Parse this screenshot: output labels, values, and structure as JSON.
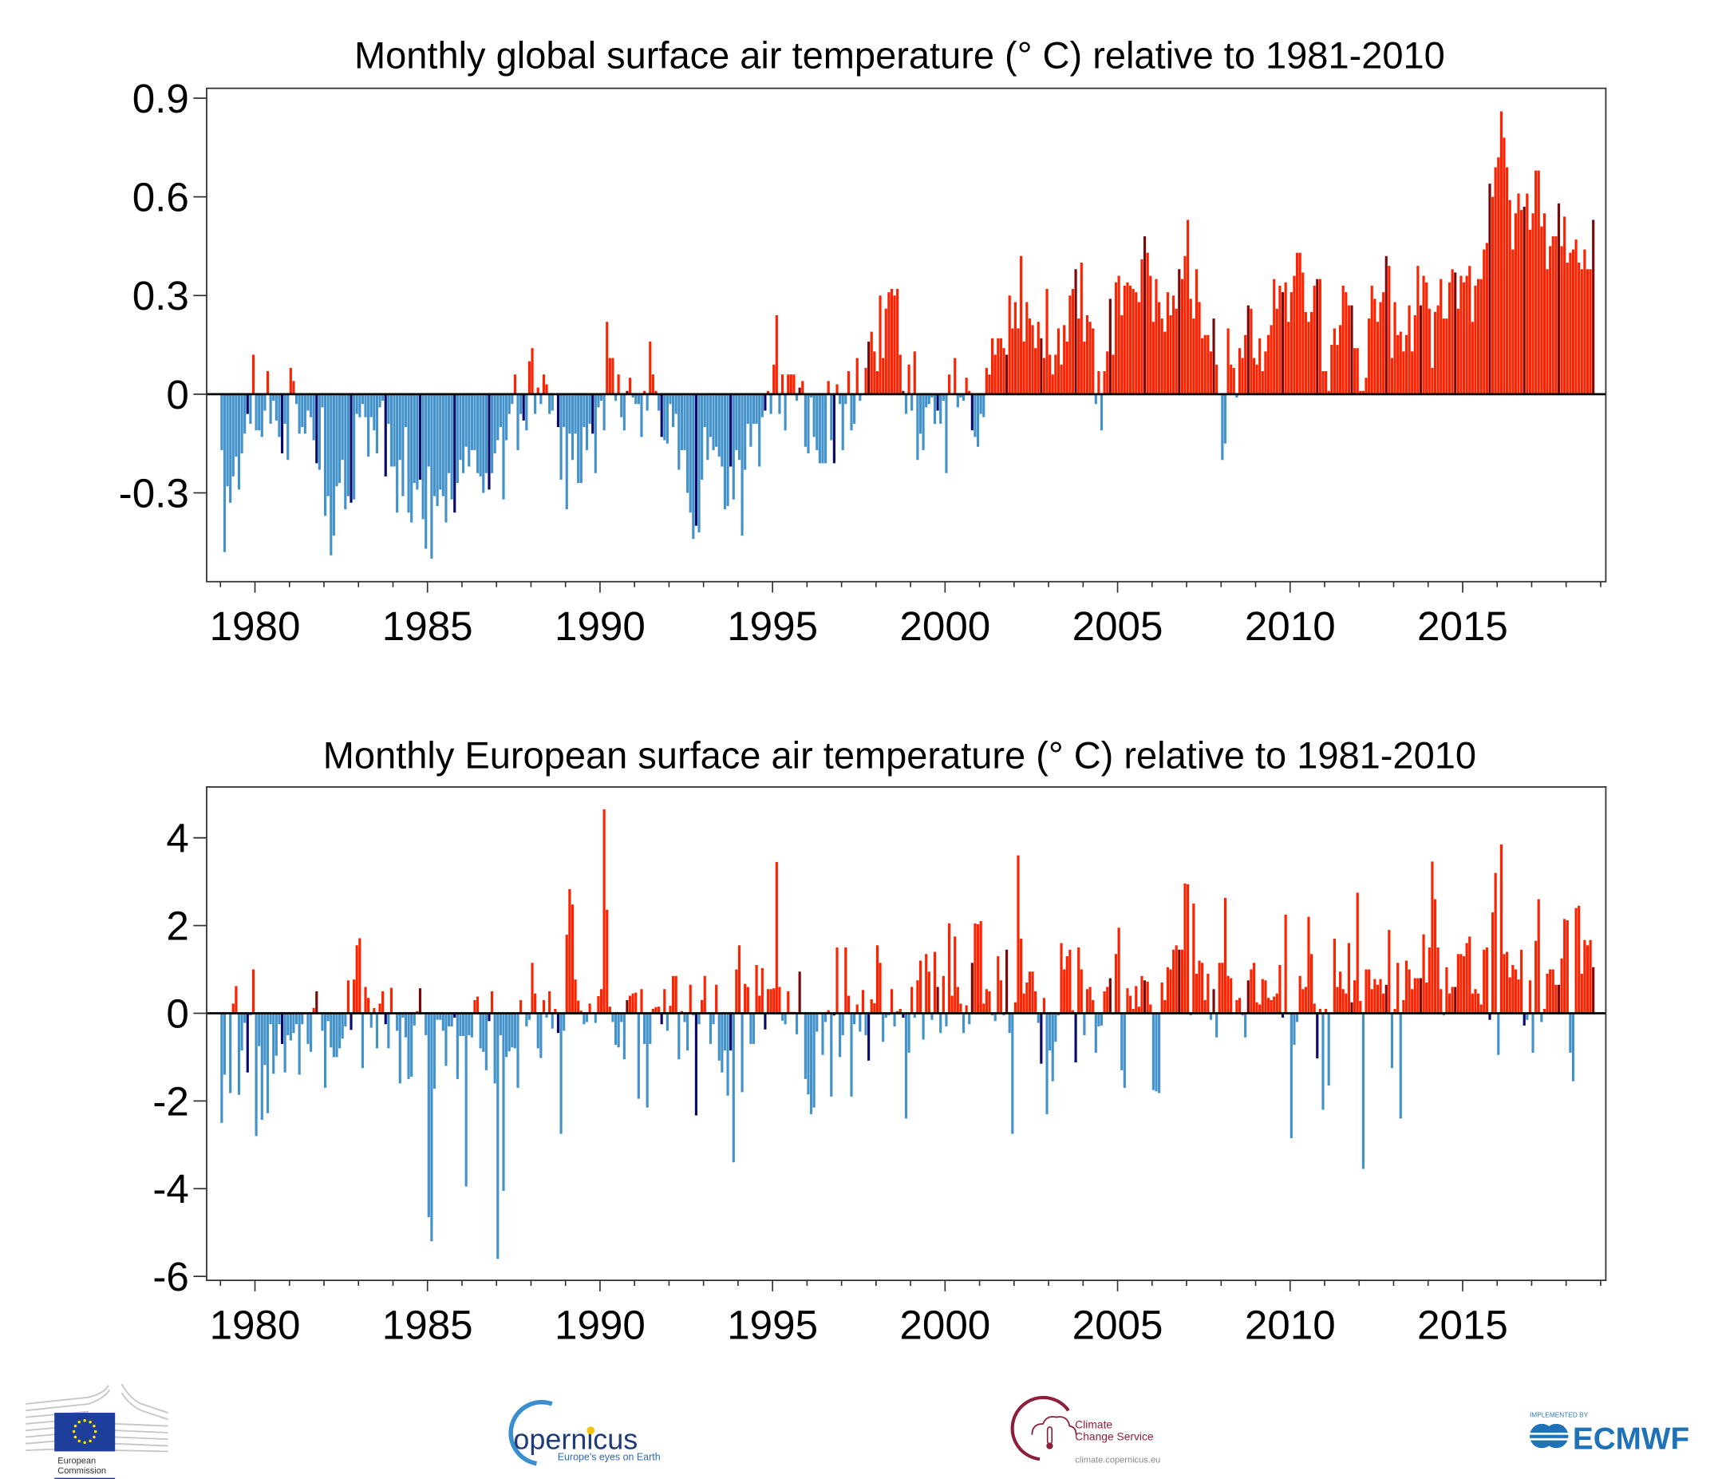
{
  "colors": {
    "positive": "#ff2200",
    "positive_highlight": "#7a0a0a",
    "negative": "#4392c9",
    "negative_highlight": "#0a0a6b",
    "zero_line": "#000000"
  },
  "chart_data": [
    {
      "type": "bar",
      "title": "Monthly  global surface air temperature (° C) relative to 1981-2010",
      "xlabel": "",
      "ylabel": "",
      "start": "1979-01",
      "frequency": "monthly",
      "highlight_month": "Oct",
      "xlim": [
        1978.6,
        2019.15
      ],
      "ylim": [
        -0.57,
        0.93
      ],
      "yticks": [
        {
          "v": 0.9,
          "label": "0.9"
        },
        {
          "v": 0.6,
          "label": "0.6"
        },
        {
          "v": 0.3,
          "label": "0.3"
        },
        {
          "v": 0,
          "label": "0"
        },
        {
          "v": -0.3,
          "label": "-0.3"
        }
      ],
      "xticks": [
        {
          "v": 1980,
          "label": "1980"
        },
        {
          "v": 1985,
          "label": "1985"
        },
        {
          "v": 1990,
          "label": "1990"
        },
        {
          "v": 1995,
          "label": "1995"
        },
        {
          "v": 2000,
          "label": "2000"
        },
        {
          "v": 2005,
          "label": "2005"
        },
        {
          "v": 2010,
          "label": "2010"
        },
        {
          "v": 2015,
          "label": "2015"
        }
      ],
      "values": [
        -0.17,
        -0.48,
        -0.28,
        -0.33,
        -0.25,
        -0.19,
        -0.29,
        -0.18,
        -0.12,
        -0.06,
        -0.09,
        0.12,
        -0.11,
        -0.11,
        -0.13,
        -0.05,
        0.07,
        -0.09,
        -0.02,
        -0.08,
        -0.13,
        -0.18,
        -0.09,
        -0.2,
        0.08,
        0.04,
        -0.03,
        -0.12,
        -0.1,
        -0.12,
        -0.05,
        -0.07,
        -0.14,
        -0.21,
        -0.23,
        -0.04,
        -0.37,
        -0.31,
        -0.49,
        -0.43,
        -0.28,
        -0.27,
        -0.2,
        -0.35,
        -0.31,
        -0.33,
        -0.32,
        -0.06,
        -0.07,
        -0.03,
        -0.07,
        -0.19,
        -0.07,
        -0.11,
        -0.18,
        -0.04,
        -0.02,
        -0.25,
        -0.09,
        -0.22,
        -0.22,
        -0.36,
        -0.2,
        -0.31,
        -0.1,
        -0.36,
        -0.39,
        -0.27,
        -0.29,
        -0.26,
        -0.38,
        -0.47,
        -0.22,
        -0.5,
        -0.31,
        -0.34,
        -0.29,
        -0.31,
        -0.39,
        -0.24,
        -0.32,
        -0.36,
        -0.27,
        -0.2,
        -0.24,
        -0.16,
        -0.22,
        -0.17,
        -0.17,
        -0.24,
        -0.25,
        -0.3,
        -0.24,
        -0.29,
        -0.24,
        -0.18,
        -0.14,
        -0.1,
        -0.32,
        -0.14,
        -0.06,
        -0.03,
        0.06,
        -0.17,
        -0.06,
        -0.08,
        -0.11,
        0.1,
        0.14,
        -0.06,
        0.02,
        -0.03,
        0.06,
        0.03,
        -0.06,
        -0.05,
        0.0,
        -0.1,
        -0.26,
        -0.1,
        -0.35,
        -0.12,
        -0.2,
        -0.12,
        -0.27,
        -0.27,
        -0.1,
        -0.17,
        -0.09,
        -0.12,
        -0.24,
        -0.04,
        -0.02,
        -0.11,
        0.22,
        0.11,
        0.11,
        -0.02,
        0.06,
        -0.07,
        -0.11,
        0.01,
        0.05,
        -0.01,
        -0.03,
        -0.03,
        -0.13,
        0.01,
        -0.05,
        0.16,
        0.06,
        0.01,
        -0.05,
        -0.13,
        -0.14,
        -0.15,
        -0.03,
        -0.1,
        -0.06,
        -0.23,
        -0.17,
        -0.17,
        -0.3,
        -0.36,
        -0.44,
        -0.4,
        -0.42,
        -0.26,
        -0.1,
        -0.2,
        -0.13,
        -0.17,
        -0.16,
        -0.19,
        -0.22,
        -0.35,
        -0.34,
        -0.22,
        -0.32,
        -0.17,
        -0.2,
        -0.43,
        -0.23,
        -0.09,
        -0.16,
        -0.09,
        -0.09,
        -0.22,
        -0.07,
        -0.05,
        0.01,
        -0.06,
        0.09,
        0.24,
        -0.06,
        0.06,
        -0.11,
        0.06,
        0.06,
        0.06,
        -0.02,
        0.02,
        0.04,
        -0.16,
        -0.18,
        -0.01,
        -0.13,
        -0.17,
        -0.21,
        -0.21,
        -0.21,
        0.04,
        -0.14,
        -0.21,
        0.03,
        -0.03,
        -0.17,
        -0.03,
        0.07,
        -0.11,
        -0.09,
        0.11,
        -0.02,
        0.0,
        0.08,
        0.16,
        0.19,
        0.13,
        0.07,
        0.3,
        0.11,
        0.26,
        0.31,
        0.32,
        0.3,
        0.32,
        0.12,
        0.01,
        -0.06,
        0.09,
        -0.05,
        0.13,
        -0.2,
        -0.12,
        -0.17,
        -0.04,
        -0.03,
        -0.01,
        -0.09,
        -0.05,
        -0.09,
        -0.02,
        -0.24,
        0.06,
        0.0,
        0.11,
        -0.04,
        -0.01,
        -0.02,
        0.05,
        0.01,
        -0.11,
        -0.13,
        -0.16,
        -0.06,
        -0.07,
        0.08,
        0.06,
        0.17,
        0.12,
        0.17,
        0.17,
        0.14,
        0.12,
        0.3,
        0.2,
        0.28,
        0.2,
        0.42,
        0.16,
        0.28,
        0.23,
        0.21,
        0.14,
        0.22,
        0.17,
        0.11,
        0.32,
        0.12,
        0.06,
        0.12,
        0.2,
        0.09,
        0.21,
        0.16,
        0.3,
        0.32,
        0.38,
        0.23,
        0.4,
        0.16,
        0.24,
        0.22,
        0.2,
        -0.03,
        0.07,
        -0.11,
        0.07,
        0.13,
        0.29,
        0.12,
        0.34,
        0.36,
        0.24,
        0.33,
        0.34,
        0.33,
        0.32,
        0.31,
        0.28,
        0.41,
        0.48,
        0.43,
        0.36,
        0.22,
        0.35,
        0.28,
        0.23,
        0.19,
        0.31,
        0.24,
        0.3,
        0.26,
        0.38,
        0.35,
        0.42,
        0.53,
        0.29,
        0.23,
        0.38,
        0.28,
        0.17,
        0.18,
        0.18,
        0.13,
        0.23,
        0.09,
        0.0,
        -0.2,
        -0.15,
        0.2,
        0.09,
        0.08,
        -0.01,
        0.14,
        0.11,
        0.18,
        0.27,
        0.26,
        0.11,
        0.09,
        0.17,
        0.07,
        0.13,
        0.18,
        0.21,
        0.35,
        0.26,
        0.33,
        0.31,
        0.34,
        0.22,
        0.31,
        0.36,
        0.43,
        0.43,
        0.37,
        0.25,
        0.22,
        0.25,
        0.33,
        0.35,
        0.35,
        0.07,
        0.07,
        0.01,
        0.15,
        0.2,
        0.15,
        0.21,
        0.33,
        0.31,
        0.27,
        0.27,
        0.14,
        0.14,
        0.01,
        0.01,
        0.05,
        0.23,
        0.33,
        0.29,
        0.22,
        0.28,
        0.31,
        0.42,
        0.39,
        0.11,
        0.28,
        0.18,
        0.19,
        0.13,
        0.18,
        0.27,
        0.13,
        0.24,
        0.39,
        0.27,
        0.36,
        0.34,
        0.26,
        0.08,
        0.25,
        0.27,
        0.35,
        0.23,
        0.23,
        0.34,
        0.38,
        0.37,
        0.26,
        0.36,
        0.34,
        0.36,
        0.39,
        0.22,
        0.33,
        0.35,
        0.35,
        0.44,
        0.46,
        0.64,
        0.6,
        0.69,
        0.72,
        0.86,
        0.78,
        0.69,
        0.59,
        0.44,
        0.55,
        0.61,
        0.56,
        0.57,
        0.61,
        0.5,
        0.55,
        0.68,
        0.68,
        0.51,
        0.55,
        0.38,
        0.45,
        0.48,
        0.48,
        0.58,
        0.45,
        0.54,
        0.4,
        0.43,
        0.44,
        0.47,
        0.4,
        0.38,
        0.44,
        0.38,
        0.38,
        0.53
      ]
    },
    {
      "type": "bar",
      "title": "Monthly  European surface air temperature (° C) relative to 1981-2010",
      "xlabel": "",
      "ylabel": "",
      "start": "1979-01",
      "frequency": "monthly",
      "highlight_month": "Oct",
      "xlim": [
        1978.6,
        2019.15
      ],
      "ylim": [
        -6.09,
        5.16
      ],
      "yticks": [
        {
          "v": 4,
          "label": "4"
        },
        {
          "v": 2,
          "label": "2"
        },
        {
          "v": 0,
          "label": "0"
        },
        {
          "v": -2,
          "label": "-2"
        },
        {
          "v": -4,
          "label": "-4"
        },
        {
          "v": -6,
          "label": "-6"
        }
      ],
      "xticks": [
        {
          "v": 1980,
          "label": "1980"
        },
        {
          "v": 1985,
          "label": "1985"
        },
        {
          "v": 1990,
          "label": "1990"
        },
        {
          "v": 1995,
          "label": "1995"
        },
        {
          "v": 2000,
          "label": "2000"
        },
        {
          "v": 2005,
          "label": "2005"
        },
        {
          "v": 2010,
          "label": "2010"
        },
        {
          "v": 2015,
          "label": "2015"
        }
      ],
      "values": [
        -2.5,
        -1.4,
        0.02,
        -1.82,
        0.22,
        0.62,
        -1.86,
        -0.85,
        -0.22,
        -1.35,
        -0.05,
        1.0,
        -2.8,
        -0.75,
        -2.43,
        -1.18,
        -2.28,
        -0.25,
        -1.38,
        -0.97,
        -0.25,
        -0.7,
        -1.35,
        -0.5,
        -0.62,
        -0.45,
        -0.25,
        -1.4,
        -0.25,
        0.02,
        -0.7,
        -0.88,
        0.12,
        0.5,
        0.0,
        -0.4,
        -1.7,
        -0.18,
        -0.78,
        -1.0,
        -1.0,
        -0.8,
        -0.58,
        -0.3,
        0.75,
        -0.38,
        0.77,
        1.55,
        1.71,
        -1.25,
        0.6,
        0.35,
        -0.33,
        0.12,
        -0.8,
        0.22,
        0.5,
        -0.25,
        -0.8,
        0.58,
        0.0,
        -0.4,
        -1.6,
        -0.1,
        -0.55,
        -1.5,
        -1.45,
        -0.28,
        0.05,
        0.57,
        0.02,
        -0.5,
        -4.65,
        -5.2,
        -1.72,
        -0.15,
        -0.15,
        -0.4,
        -1.2,
        -0.3,
        -0.3,
        -0.1,
        -1.5,
        -0.52,
        -0.52,
        -3.95,
        -0.5,
        -0.55,
        0.3,
        0.38,
        -0.8,
        -0.88,
        -1.3,
        -0.18,
        0.5,
        -1.6,
        -5.6,
        -0.5,
        -4.05,
        -1.0,
        -0.87,
        -0.78,
        -0.8,
        -1.7,
        0.3,
        0.0,
        -0.3,
        -0.15,
        1.15,
        0.45,
        -0.8,
        -1.02,
        0.3,
        -0.1,
        0.5,
        -0.35,
        0.1,
        -0.45,
        -2.75,
        -0.4,
        1.79,
        2.83,
        2.48,
        0.77,
        0.29,
        0.06,
        -0.25,
        -0.2,
        0.22,
        0.02,
        -0.22,
        0.39,
        0.55,
        4.65,
        2.36,
        0.15,
        -0.2,
        -0.72,
        -0.78,
        -0.2,
        -1.05,
        0.3,
        0.4,
        0.45,
        0.47,
        -1.95,
        0.55,
        -0.7,
        -2.15,
        -0.7,
        0.1,
        0.14,
        0.15,
        -0.25,
        0.55,
        -0.4,
        0.17,
        0.85,
        0.85,
        -1.05,
        0.05,
        -0.2,
        -0.85,
        0.65,
        -0.05,
        -2.33,
        -0.25,
        0.3,
        0.85,
        -0.02,
        -0.7,
        -0.25,
        0.65,
        -1.08,
        -1.35,
        -0.85,
        -1.88,
        -0.85,
        -3.4,
        1.0,
        1.55,
        -1.8,
        0.67,
        0.6,
        -0.7,
        -0.7,
        1.1,
        0.4,
        1.03,
        -0.37,
        0.55,
        0.55,
        0.57,
        3.45,
        0.6,
        -0.17,
        -0.25,
        0.5,
        0.03,
        0.03,
        -0.48,
        0.95,
        0.0,
        -1.5,
        -1.85,
        -2.3,
        -2.15,
        -0.42,
        0.02,
        -0.95,
        -0.2,
        0.07,
        -1.9,
        -0.05,
        1.5,
        -1.0,
        -0.5,
        1.5,
        0.4,
        -1.9,
        -0.25,
        0.2,
        -0.42,
        0.53,
        -0.5,
        -1.08,
        0.32,
        0.23,
        1.55,
        1.15,
        -0.65,
        -0.1,
        -0.05,
        0.55,
        -0.3,
        0.05,
        0.1,
        -0.1,
        -2.4,
        -0.9,
        0.6,
        -0.1,
        0.75,
        1.2,
        -0.6,
        1.35,
        0.95,
        -0.15,
        1.4,
        0.6,
        -0.45,
        0.85,
        -0.3,
        2.05,
        0.4,
        1.75,
        0.6,
        0.22,
        -0.45,
        0.18,
        -0.25,
        1.15,
        2.05,
        2.03,
        2.1,
        0.22,
        0.55,
        0.5,
        -0.05,
        -0.18,
        1.3,
        0.75,
        -0.05,
        1.45,
        -0.45,
        -2.75,
        0.25,
        3.6,
        1.7,
        0.45,
        0.7,
        0.95,
        0.95,
        0.5,
        -0.22,
        -1.15,
        0.35,
        -2.3,
        -0.85,
        -1.55,
        -0.65,
        -0.05,
        1.6,
        1.0,
        1.3,
        1.45,
        0.07,
        -1.12,
        1.5,
        1.0,
        -0.5,
        0.55,
        0.6,
        0.3,
        -0.9,
        -0.3,
        -0.28,
        0.5,
        0.6,
        0.8,
        -0.03,
        1.35,
        1.95,
        -1.3,
        -1.7,
        0.57,
        0.4,
        0.1,
        0.62,
        0.15,
        0.85,
        0.75,
        0.72,
        0.2,
        -1.75,
        -1.78,
        -1.82,
        0.7,
        0.3,
        1.05,
        1.0,
        1.45,
        1.55,
        1.45,
        1.45,
        2.96,
        2.94,
        -0.05,
        2.5,
        0.9,
        1.2,
        1.15,
        0.3,
        0.9,
        -0.15,
        0.55,
        -0.55,
        1.15,
        1.15,
        2.63,
        0.85,
        0.8,
        0.0,
        0.3,
        0.35,
        -0.05,
        -0.55,
        0.75,
        1.0,
        1.15,
        0.25,
        0.2,
        0.78,
        0.75,
        0.35,
        0.3,
        0.38,
        0.45,
        1.1,
        -0.1,
        2.25,
        -0.02,
        -2.85,
        -0.72,
        -0.2,
        0.85,
        0.55,
        0.6,
        2.2,
        1.35,
        0.22,
        -1.03,
        0.1,
        -2.2,
        0.1,
        -1.65,
        0.0,
        1.7,
        0.6,
        0.95,
        0.55,
        0.45,
        1.6,
        0.25,
        0.75,
        2.75,
        0.28,
        -3.55,
        1.0,
        1.0,
        0.55,
        0.78,
        0.65,
        0.78,
        0.45,
        0.65,
        1.9,
        -1.25,
        0.1,
        1.15,
        -2.4,
        0.3,
        1.2,
        1.0,
        0.55,
        0.8,
        0.8,
        0.8,
        1.8,
        0.7,
        1.5,
        3.46,
        2.6,
        1.5,
        0.55,
        -0.05,
        1.05,
        0.45,
        0.6,
        0.6,
        1.35,
        1.35,
        1.3,
        1.6,
        1.75,
        0.45,
        0.55,
        0.45,
        0.2,
        1.45,
        1.5,
        -0.15,
        2.3,
        3.2,
        -0.95,
        3.85,
        1.35,
        1.4,
        0.82,
        1.1,
        1.0,
        0.77,
        1.45,
        -0.28,
        -0.15,
        0.75,
        -0.9,
        1.65,
        2.6,
        -0.2,
        0.1,
        0.9,
        1.0,
        1.0,
        0.65,
        0.65,
        1.25,
        2.15,
        2.12,
        -0.9,
        -1.55,
        2.4,
        2.45,
        0.9,
        1.67,
        1.55,
        1.67,
        1.05
      ]
    }
  ],
  "logos": {
    "ec": {
      "line1": "European",
      "line2": "Commission"
    },
    "copernicus": {
      "name": "opernicus",
      "tagline": "Europe's eyes on Earth"
    },
    "c3s": {
      "line1": "Climate",
      "line2": "Change Service",
      "url": "climate.copernicus.eu"
    },
    "ecmwf": {
      "implemented": "IMPLEMENTED BY",
      "name": "ECMWF"
    }
  }
}
